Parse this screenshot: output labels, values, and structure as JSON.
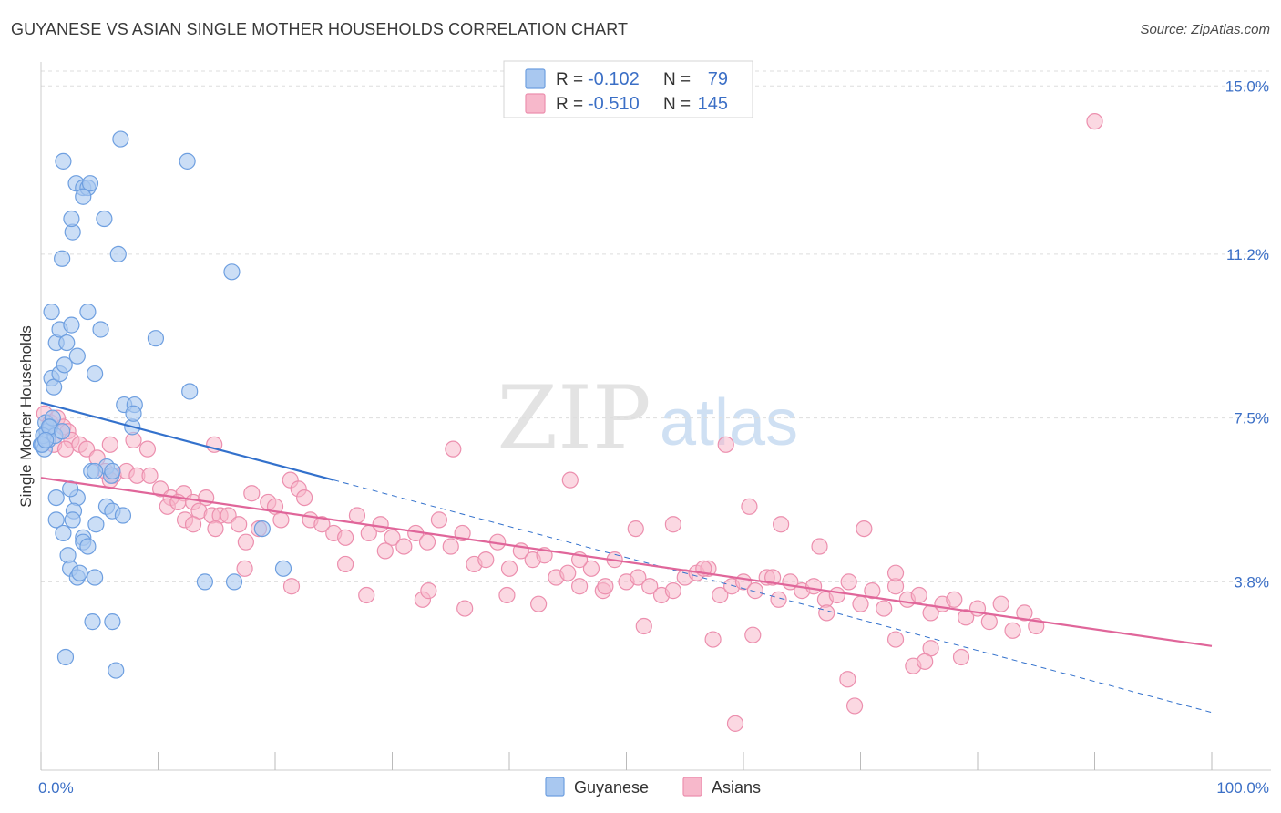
{
  "title": "GUYANESE VS ASIAN SINGLE MOTHER HOUSEHOLDS CORRELATION CHART",
  "source": "Source: ZipAtlas.com",
  "watermark": {
    "zip": "ZIP",
    "atlas": "atlas"
  },
  "colors": {
    "guyanese_fill": "#a9c8f0",
    "guyanese_stroke": "#6e9fe0",
    "guyanese_line": "#3371cc",
    "asians_fill": "#f7b8cb",
    "asians_stroke": "#ec8fae",
    "asians_line": "#e0669a",
    "tick_text": "#3b6fc6",
    "grid": "#dddddd"
  },
  "legend": {
    "rows": [
      {
        "r_label": "R =",
        "r_value": "-0.102",
        "n_label": "N =",
        "n_value": "79"
      },
      {
        "r_label": "R =",
        "r_value": "-0.510",
        "n_label": "N =",
        "n_value": "145"
      }
    ]
  },
  "chart_data": {
    "type": "scatter",
    "title": "GUYANESE VS ASIAN SINGLE MOTHER HOUSEHOLDS CORRELATION CHART",
    "xlabel": "",
    "ylabel": "Single Mother Households",
    "xlim": [
      0,
      100
    ],
    "ylim": [
      0,
      15.5
    ],
    "x_tick_labels": [
      "0.0%",
      "100.0%"
    ],
    "y_ticks": [
      3.8,
      7.5,
      11.2,
      15.0
    ],
    "y_tick_labels": [
      "3.8%",
      "7.5%",
      "11.2%",
      "15.0%"
    ],
    "grid": true,
    "legend_position": "bottom",
    "series": [
      {
        "name": "Guyanese",
        "stats": {
          "r": -0.102,
          "n": 79
        },
        "trend": {
          "x0": 0,
          "y0": 7.85,
          "x1": 100,
          "y1": 0.85,
          "solid_until": 25
        },
        "points": [
          [
            0.0,
            6.9
          ],
          [
            0.2,
            7.1
          ],
          [
            0.4,
            7.4
          ],
          [
            0.5,
            7.2
          ],
          [
            0.3,
            6.8
          ],
          [
            0.6,
            7.0
          ],
          [
            0.8,
            7.3
          ],
          [
            0.2,
            7.1
          ],
          [
            1.0,
            7.5
          ],
          [
            1.2,
            7.1
          ],
          [
            0.9,
            8.4
          ],
          [
            1.1,
            8.2
          ],
          [
            1.6,
            8.5
          ],
          [
            2.0,
            8.7
          ],
          [
            1.3,
            9.2
          ],
          [
            1.6,
            9.5
          ],
          [
            2.2,
            9.2
          ],
          [
            2.6,
            9.6
          ],
          [
            3.1,
            8.9
          ],
          [
            4.0,
            9.9
          ],
          [
            4.6,
            8.5
          ],
          [
            5.1,
            9.5
          ],
          [
            0.9,
            9.9
          ],
          [
            1.8,
            11.1
          ],
          [
            2.7,
            11.7
          ],
          [
            2.6,
            12.0
          ],
          [
            5.4,
            12.0
          ],
          [
            3.0,
            12.8
          ],
          [
            3.6,
            12.7
          ],
          [
            4.0,
            12.7
          ],
          [
            4.2,
            12.8
          ],
          [
            3.6,
            12.5
          ],
          [
            1.9,
            13.3
          ],
          [
            6.6,
            11.2
          ],
          [
            6.8,
            13.8
          ],
          [
            12.5,
            13.3
          ],
          [
            16.3,
            10.8
          ],
          [
            9.8,
            9.3
          ],
          [
            12.7,
            8.1
          ],
          [
            7.1,
            7.8
          ],
          [
            8.0,
            7.8
          ],
          [
            7.8,
            7.3
          ],
          [
            7.9,
            7.6
          ],
          [
            5.6,
            6.4
          ],
          [
            4.3,
            6.3
          ],
          [
            4.6,
            6.3
          ],
          [
            6.0,
            6.2
          ],
          [
            6.1,
            6.3
          ],
          [
            1.3,
            5.7
          ],
          [
            3.1,
            5.7
          ],
          [
            2.5,
            5.9
          ],
          [
            2.8,
            5.4
          ],
          [
            5.6,
            5.5
          ],
          [
            6.1,
            5.4
          ],
          [
            7.0,
            5.3
          ],
          [
            2.7,
            5.2
          ],
          [
            1.3,
            5.2
          ],
          [
            4.7,
            5.1
          ],
          [
            1.9,
            4.9
          ],
          [
            3.6,
            4.8
          ],
          [
            3.6,
            4.7
          ],
          [
            4.0,
            4.6
          ],
          [
            2.3,
            4.4
          ],
          [
            2.5,
            4.1
          ],
          [
            3.1,
            3.9
          ],
          [
            3.3,
            4.0
          ],
          [
            4.6,
            3.9
          ],
          [
            14.0,
            3.8
          ],
          [
            16.5,
            3.8
          ],
          [
            18.9,
            5.0
          ],
          [
            20.7,
            4.1
          ],
          [
            4.4,
            2.9
          ],
          [
            6.1,
            2.9
          ],
          [
            2.1,
            2.1
          ],
          [
            6.4,
            1.8
          ],
          [
            0.1,
            6.9
          ],
          [
            0.7,
            7.3
          ],
          [
            0.4,
            7.0
          ],
          [
            1.8,
            7.2
          ]
        ]
      },
      {
        "name": "Asians",
        "stats": {
          "r": -0.51,
          "n": 145
        },
        "trend": {
          "x0": 0,
          "y0": 6.15,
          "x1": 100,
          "y1": 2.35
        },
        "points": [
          [
            0.3,
            7.6
          ],
          [
            0.8,
            7.4
          ],
          [
            1.4,
            7.5
          ],
          [
            1.9,
            7.3
          ],
          [
            2.3,
            7.2
          ],
          [
            2.6,
            7.0
          ],
          [
            1.1,
            6.9
          ],
          [
            2.1,
            6.8
          ],
          [
            3.3,
            6.9
          ],
          [
            3.9,
            6.8
          ],
          [
            4.8,
            6.6
          ],
          [
            5.9,
            6.9
          ],
          [
            7.9,
            7.0
          ],
          [
            9.1,
            6.8
          ],
          [
            5.5,
            6.3
          ],
          [
            6.2,
            6.2
          ],
          [
            7.3,
            6.3
          ],
          [
            8.2,
            6.2
          ],
          [
            9.3,
            6.2
          ],
          [
            5.9,
            6.1
          ],
          [
            10.2,
            5.9
          ],
          [
            11.1,
            5.7
          ],
          [
            12.2,
            5.8
          ],
          [
            13.0,
            5.6
          ],
          [
            14.1,
            5.7
          ],
          [
            10.8,
            5.5
          ],
          [
            11.7,
            5.6
          ],
          [
            13.5,
            5.4
          ],
          [
            14.6,
            5.3
          ],
          [
            15.3,
            5.3
          ],
          [
            12.3,
            5.2
          ],
          [
            13.0,
            5.1
          ],
          [
            14.9,
            5.0
          ],
          [
            16.0,
            5.3
          ],
          [
            16.9,
            5.1
          ],
          [
            17.5,
            4.7
          ],
          [
            18.6,
            5.0
          ],
          [
            19.4,
            5.6
          ],
          [
            20.0,
            5.5
          ],
          [
            20.5,
            5.2
          ],
          [
            18.0,
            5.8
          ],
          [
            21.3,
            6.1
          ],
          [
            22.0,
            5.9
          ],
          [
            22.5,
            5.7
          ],
          [
            23.0,
            5.2
          ],
          [
            24.0,
            5.1
          ],
          [
            25.0,
            4.9
          ],
          [
            26.0,
            4.8
          ],
          [
            27.0,
            5.3
          ],
          [
            28.0,
            4.9
          ],
          [
            29.0,
            5.1
          ],
          [
            30.0,
            4.8
          ],
          [
            31.0,
            4.6
          ],
          [
            32.0,
            4.9
          ],
          [
            33.0,
            4.7
          ],
          [
            34.0,
            5.2
          ],
          [
            35.0,
            4.6
          ],
          [
            36.0,
            4.9
          ],
          [
            37.0,
            4.2
          ],
          [
            38.0,
            4.3
          ],
          [
            39.0,
            4.7
          ],
          [
            40.0,
            4.1
          ],
          [
            41.0,
            4.5
          ],
          [
            42.0,
            4.3
          ],
          [
            43.0,
            4.4
          ],
          [
            44.0,
            3.9
          ],
          [
            45.0,
            4.0
          ],
          [
            46.0,
            3.7
          ],
          [
            47.0,
            4.1
          ],
          [
            48.0,
            3.6
          ],
          [
            49.0,
            4.3
          ],
          [
            50.0,
            3.8
          ],
          [
            51.0,
            3.9
          ],
          [
            52.0,
            3.7
          ],
          [
            53.0,
            3.5
          ],
          [
            54.0,
            3.6
          ],
          [
            55.0,
            3.9
          ],
          [
            56.0,
            4.0
          ],
          [
            57.0,
            4.1
          ],
          [
            58.0,
            3.5
          ],
          [
            59.0,
            3.7
          ],
          [
            60.0,
            3.8
          ],
          [
            61.0,
            3.6
          ],
          [
            62.0,
            3.9
          ],
          [
            63.0,
            3.4
          ],
          [
            64.0,
            3.8
          ],
          [
            65.0,
            3.6
          ],
          [
            66.0,
            3.7
          ],
          [
            67.0,
            3.4
          ],
          [
            68.0,
            3.5
          ],
          [
            69.0,
            3.8
          ],
          [
            70.0,
            3.3
          ],
          [
            71.0,
            3.6
          ],
          [
            72.0,
            3.2
          ],
          [
            73.0,
            3.7
          ],
          [
            74.0,
            3.4
          ],
          [
            75.0,
            3.5
          ],
          [
            76.0,
            3.1
          ],
          [
            77.0,
            3.3
          ],
          [
            78.0,
            3.4
          ],
          [
            79.0,
            3.0
          ],
          [
            80.0,
            3.2
          ],
          [
            81.0,
            2.9
          ],
          [
            82.0,
            3.3
          ],
          [
            83.0,
            2.7
          ],
          [
            84.0,
            3.1
          ],
          [
            85.0,
            2.8
          ],
          [
            14.8,
            6.9
          ],
          [
            35.2,
            6.8
          ],
          [
            45.2,
            6.1
          ],
          [
            58.5,
            6.9
          ],
          [
            50.8,
            5.0
          ],
          [
            54.0,
            5.1
          ],
          [
            60.5,
            5.5
          ],
          [
            63.2,
            5.1
          ],
          [
            70.3,
            5.0
          ],
          [
            66.5,
            4.6
          ],
          [
            62.5,
            3.9
          ],
          [
            56.6,
            4.1
          ],
          [
            48.2,
            3.7
          ],
          [
            42.5,
            3.3
          ],
          [
            39.8,
            3.5
          ],
          [
            36.2,
            3.2
          ],
          [
            32.6,
            3.4
          ],
          [
            33.1,
            3.6
          ],
          [
            27.8,
            3.5
          ],
          [
            21.4,
            3.7
          ],
          [
            17.4,
            4.1
          ],
          [
            26.0,
            4.2
          ],
          [
            29.4,
            4.5
          ],
          [
            46.0,
            4.3
          ],
          [
            51.5,
            2.8
          ],
          [
            57.4,
            2.5
          ],
          [
            60.8,
            2.6
          ],
          [
            67.1,
            3.1
          ],
          [
            73.0,
            2.5
          ],
          [
            76.0,
            2.3
          ],
          [
            74.5,
            1.9
          ],
          [
            69.5,
            1.0
          ],
          [
            73.0,
            4.0
          ],
          [
            75.5,
            2.0
          ],
          [
            90.0,
            14.2
          ],
          [
            59.3,
            0.6
          ],
          [
            78.6,
            2.1
          ],
          [
            68.9,
            1.6
          ]
        ]
      }
    ]
  }
}
